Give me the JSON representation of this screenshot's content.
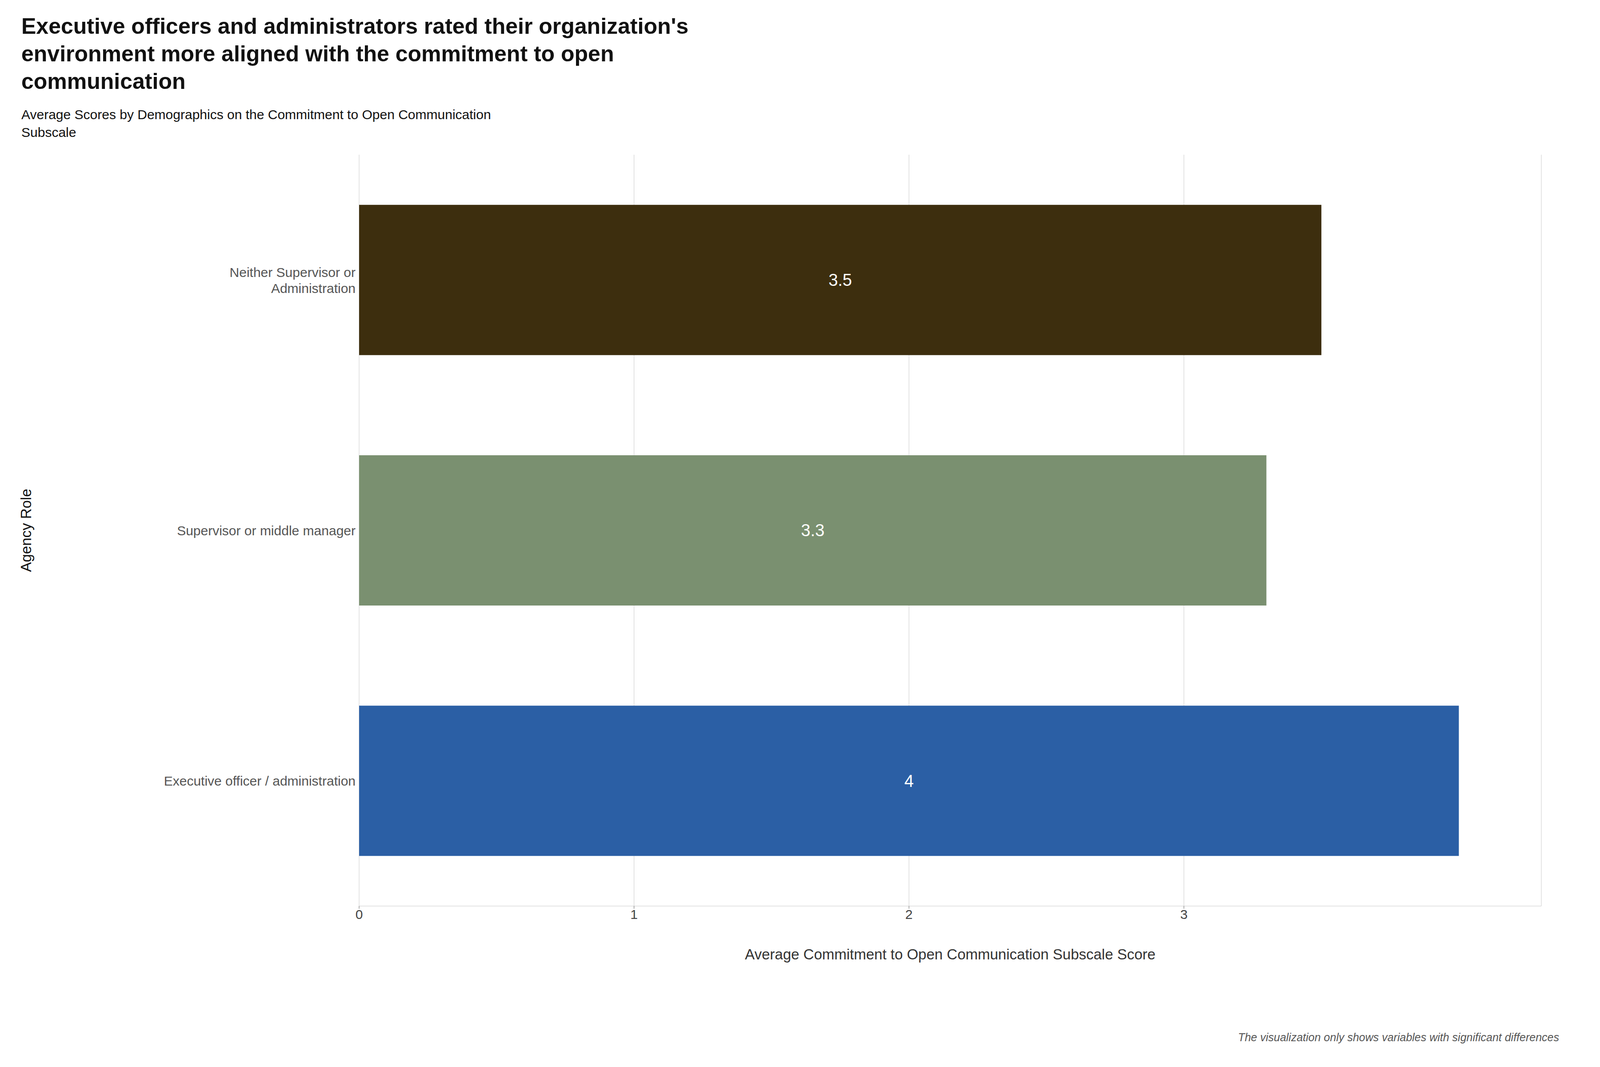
{
  "chart_data": {
    "type": "bar",
    "orientation": "horizontal",
    "title": "Executive officers and administrators rated their organization's\nenvironment more aligned with the commitment to open\ncommunication",
    "subtitle": "Average Scores by Demographics on the Commitment to Open Communication\nSubscale",
    "categories": [
      "Executive officer / administration",
      "Supervisor or middle manager",
      "Neither Supervisor or\nAdministration"
    ],
    "values": [
      4.0,
      3.3,
      3.5
    ],
    "colors": [
      "#2b5fa5",
      "#7a9070",
      "#3d2e0e"
    ],
    "data_labels": true,
    "xlabel": "Average Commitment to Open Communication Subscale Score",
    "ylabel": "Agency Role",
    "xlim": [
      0,
      4.3
    ],
    "xticks": [
      0,
      1,
      2,
      3
    ],
    "grid": true,
    "footnote": "The visualization only shows variables with significant differences"
  }
}
